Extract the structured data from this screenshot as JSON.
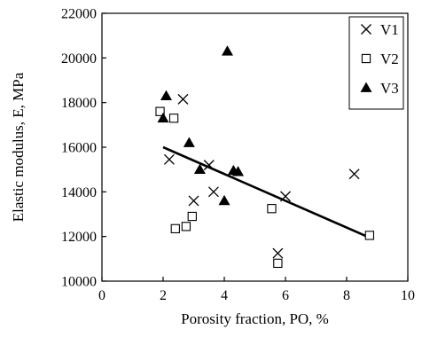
{
  "chart_data": {
    "type": "scatter",
    "xlabel": "Porosity fraction, PO, %",
    "ylabel": "Elastic modulus,  E, MPa",
    "xlim": [
      0,
      10
    ],
    "ylim": [
      10000,
      22000
    ],
    "xticks": [
      "0",
      "2",
      "4",
      "6",
      "8",
      "10"
    ],
    "yticks": [
      "10000",
      "12000",
      "14000",
      "16000",
      "18000",
      "20000",
      "22000"
    ],
    "legend_position": "top-right",
    "grid": false,
    "series": [
      {
        "name": "V1",
        "marker": "x",
        "points": [
          {
            "x": 2.2,
            "y": 15450
          },
          {
            "x": 2.65,
            "y": 18150
          },
          {
            "x": 3.0,
            "y": 13600
          },
          {
            "x": 3.5,
            "y": 15200
          },
          {
            "x": 3.65,
            "y": 14000
          },
          {
            "x": 5.75,
            "y": 11250
          },
          {
            "x": 6.0,
            "y": 13800
          },
          {
            "x": 8.25,
            "y": 14800
          }
        ]
      },
      {
        "name": "V2",
        "marker": "square",
        "points": [
          {
            "x": 1.9,
            "y": 17600
          },
          {
            "x": 2.35,
            "y": 17300
          },
          {
            "x": 2.4,
            "y": 12350
          },
          {
            "x": 2.75,
            "y": 12450
          },
          {
            "x": 2.95,
            "y": 12900
          },
          {
            "x": 5.55,
            "y": 13250
          },
          {
            "x": 5.75,
            "y": 10800
          },
          {
            "x": 8.75,
            "y": 12050
          }
        ]
      },
      {
        "name": "V3",
        "marker": "triangle",
        "points": [
          {
            "x": 2.0,
            "y": 17300
          },
          {
            "x": 2.1,
            "y": 18300
          },
          {
            "x": 2.85,
            "y": 16200
          },
          {
            "x": 3.2,
            "y": 15000
          },
          {
            "x": 4.0,
            "y": 13600
          },
          {
            "x": 4.1,
            "y": 20300
          },
          {
            "x": 4.3,
            "y": 14950
          },
          {
            "x": 4.45,
            "y": 14900
          }
        ]
      }
    ],
    "trendline": {
      "x": [
        2.0,
        8.75
      ],
      "y": [
        16000,
        11950
      ]
    }
  }
}
